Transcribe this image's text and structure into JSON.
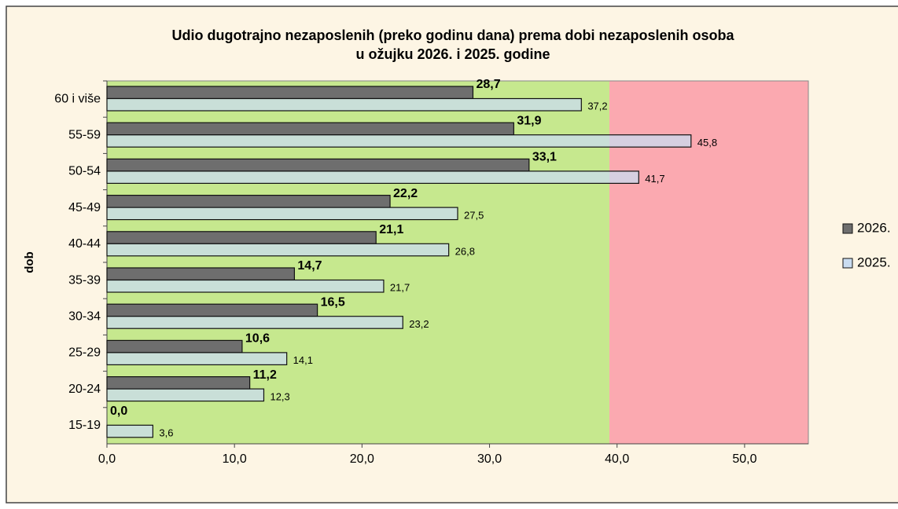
{
  "chart_data": {
    "type": "hbar",
    "title": "Udio dugotrajno nezaposlenih (preko godinu dana)  prema dobi nezaposlenih osoba",
    "subtitle": "u ožujku 2026. i 2025. godine",
    "y_label": "dob",
    "categories": [
      "60 i više",
      "55-59",
      "50-54",
      "45-49",
      "40-44",
      "35-39",
      "30-34",
      "25-29",
      "20-24",
      "15-19"
    ],
    "series": [
      {
        "name": "2026.",
        "color": "#6e6e6e",
        "bold_labels": true,
        "values": [
          28.7,
          31.9,
          33.1,
          22.2,
          21.1,
          14.7,
          16.5,
          10.6,
          11.2,
          0.0
        ],
        "value_labels": [
          "28,7",
          "31,9",
          "33,1",
          "22,2",
          "21,1",
          "14,7",
          "16,5",
          "10,6",
          "11,2",
          "0,0"
        ]
      },
      {
        "name": "2025.",
        "color": "#c9dcf0",
        "bold_labels": false,
        "values": [
          37.2,
          45.8,
          41.7,
          27.5,
          26.8,
          21.7,
          23.2,
          14.1,
          12.3,
          3.6
        ],
        "value_labels": [
          "37,2",
          "45,8",
          "41,7",
          "27,5",
          "26,8",
          "21,7",
          "23,2",
          "14,1",
          "12,3",
          "3,6"
        ]
      }
    ],
    "xlim": [
      0,
      55
    ],
    "xticks": [
      {
        "value": 0,
        "label": "0,0"
      },
      {
        "value": 10,
        "label": "10,0"
      },
      {
        "value": 20,
        "label": "20,0"
      },
      {
        "value": 30,
        "label": "30,0"
      },
      {
        "value": 40,
        "label": "40,0"
      },
      {
        "value": 50,
        "label": "50,0"
      }
    ],
    "background_bands": [
      {
        "from": 0,
        "to": 39.4,
        "color": "#c6e88e"
      },
      {
        "from": 39.4,
        "to": 55,
        "color": "#fba9b0"
      }
    ],
    "legend": "right"
  }
}
